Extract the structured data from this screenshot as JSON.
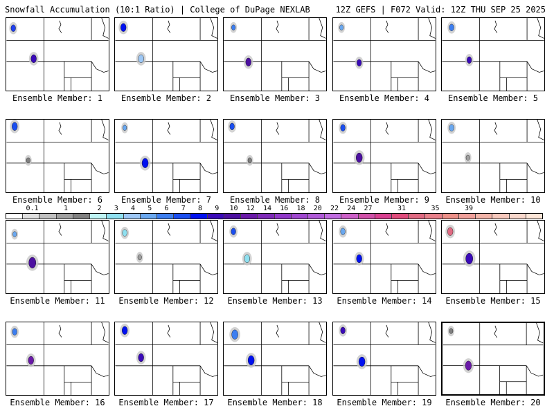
{
  "header": {
    "left": "Snowfall Accumulation (10:1 Ratio) | College of DuPage NEXLAB",
    "right": "12Z GEFS | F072 Valid: 12Z THU SEP 25 2025"
  },
  "colorbar": {
    "tick_labels": [
      "0.1",
      "1",
      "2",
      "3",
      "4",
      "5",
      "6",
      "7",
      "8",
      "9",
      "10",
      "12",
      "14",
      "16",
      "18",
      "20",
      "22",
      "24",
      "27",
      "31",
      "35",
      "39"
    ],
    "colors": [
      "#ffffff",
      "#e0e0e0",
      "#c0c0c0",
      "#a0a0a0",
      "#808080",
      "#bff5f5",
      "#8fe0f0",
      "#9ec8f6",
      "#6aa8f0",
      "#3c7ef0",
      "#1a4ef0",
      "#0010f0",
      "#3a0ab8",
      "#4c10a0",
      "#6a1aa8",
      "#7e2ab8",
      "#9038c8",
      "#a048d0",
      "#b05ad8",
      "#c06ce0",
      "#cc60c8",
      "#d050a8",
      "#d84090",
      "#e04c7c",
      "#e06a82",
      "#e8808a",
      "#ec9088",
      "#f0a09a",
      "#f2b4a8",
      "#f6c8bc",
      "#f9d8cc",
      "#fde6d8"
    ]
  },
  "members": [
    {
      "label": "Ensemble Member: 1"
    },
    {
      "label": "Ensemble Member: 2"
    },
    {
      "label": "Ensemble Member: 3"
    },
    {
      "label": "Ensemble Member: 4"
    },
    {
      "label": "Ensemble Member: 5"
    },
    {
      "label": "Ensemble Member: 6"
    },
    {
      "label": "Ensemble Member: 7"
    },
    {
      "label": "Ensemble Member: 8"
    },
    {
      "label": "Ensemble Member: 9"
    },
    {
      "label": "Ensemble Member: 10"
    },
    {
      "label": "Ensemble Member: 11"
    },
    {
      "label": "Ensemble Member: 12"
    },
    {
      "label": "Ensemble Member: 13"
    },
    {
      "label": "Ensemble Member: 14"
    },
    {
      "label": "Ensemble Member: 15"
    },
    {
      "label": "Ensemble Member: 16"
    },
    {
      "label": "Ensemble Member: 17"
    },
    {
      "label": "Ensemble Member: 18"
    },
    {
      "label": "Ensemble Member: 19"
    },
    {
      "label": "Ensemble Member: 20"
    }
  ]
}
